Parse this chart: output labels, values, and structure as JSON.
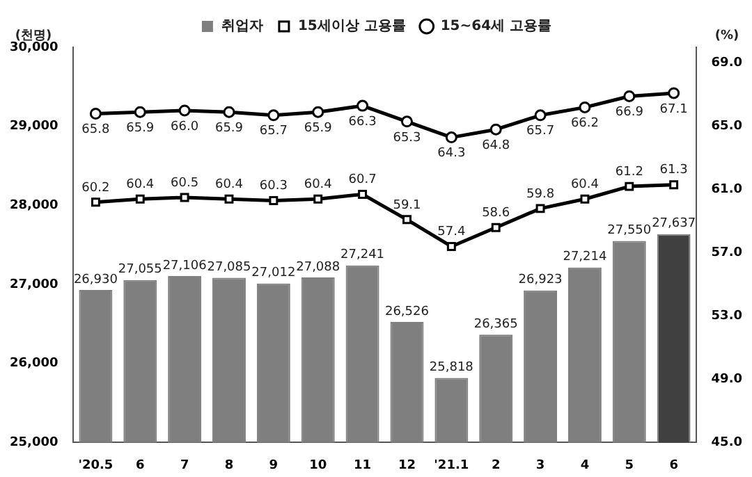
{
  "chart_data": {
    "type": "bar",
    "categories": [
      "'20.5",
      "6",
      "7",
      "8",
      "9",
      "10",
      "11",
      "12",
      "'21.1",
      "2",
      "3",
      "4",
      "5",
      "6"
    ],
    "ylabel": "(천명)",
    "y2label": "(%)",
    "series": [
      {
        "name": "취업자",
        "color": "#7f7f7f",
        "value_labels": [
          "26,930",
          "27,055",
          "27,106",
          "27,085",
          "27,012",
          "27,088",
          "27,241",
          "26,526",
          "25,818",
          "26,365",
          "26,923",
          "27,214",
          "27,550",
          "27,637"
        ],
        "colors": [
          "#7f7f7f",
          "#7f7f7f",
          "#7f7f7f",
          "#7f7f7f",
          "#7f7f7f",
          "#7f7f7f",
          "#7f7f7f",
          "#7f7f7f",
          "#7f7f7f",
          "#7f7f7f",
          "#7f7f7f",
          "#7f7f7f",
          "#7f7f7f",
          "#404040"
        ],
        "values": [
          26930,
          27055,
          27106,
          27085,
          27012,
          27088,
          27241,
          26526,
          25818,
          26365,
          26923,
          27214,
          27550,
          27637
        ]
      },
      {
        "name": "15세이상 고용률",
        "type": "line",
        "axis": "y2",
        "marker": "square",
        "color": "#000000",
        "value_labels": [
          "60.2",
          "60.4",
          "60.5",
          "60.4",
          "60.3",
          "60.4",
          "60.7",
          "59.1",
          "57.4",
          "58.6",
          "59.8",
          "60.4",
          "61.2",
          "61.3"
        ],
        "values": [
          60.2,
          60.4,
          60.5,
          60.4,
          60.3,
          60.4,
          60.7,
          59.1,
          57.4,
          58.6,
          59.8,
          60.4,
          61.2,
          61.3
        ]
      },
      {
        "name": "15~64세 고용률",
        "type": "line",
        "axis": "y2",
        "marker": "circle",
        "color": "#000000",
        "value_labels": [
          "65.8",
          "65.9",
          "66.0",
          "65.9",
          "65.7",
          "65.9",
          "66.3",
          "65.3",
          "64.3",
          "64.8",
          "65.7",
          "66.2",
          "66.9",
          "67.1"
        ],
        "values": [
          65.8,
          65.9,
          66.0,
          65.9,
          65.7,
          65.9,
          66.3,
          65.3,
          64.3,
          64.8,
          65.7,
          66.2,
          66.9,
          67.1
        ]
      }
    ],
    "ylim": [
      25000,
      30000
    ],
    "yticks": [
      {
        "value": 25000,
        "label": "25,000"
      },
      {
        "value": 26000,
        "label": "26,000"
      },
      {
        "value": 27000,
        "label": "27,000"
      },
      {
        "value": 28000,
        "label": "28,000"
      },
      {
        "value": 29000,
        "label": "29,000"
      },
      {
        "value": 30000,
        "label": "30,000"
      }
    ],
    "y2lim": [
      45,
      70
    ],
    "y2ticks": [
      {
        "value": 45,
        "label": "45.0"
      },
      {
        "value": 49,
        "label": "49.0"
      },
      {
        "value": 53,
        "label": "53.0"
      },
      {
        "value": 57,
        "label": "57.0"
      },
      {
        "value": 61,
        "label": "61.0"
      },
      {
        "value": 65,
        "label": "65.0"
      },
      {
        "value": 69,
        "label": "69.0"
      }
    ],
    "legend": "top",
    "grid": false
  }
}
